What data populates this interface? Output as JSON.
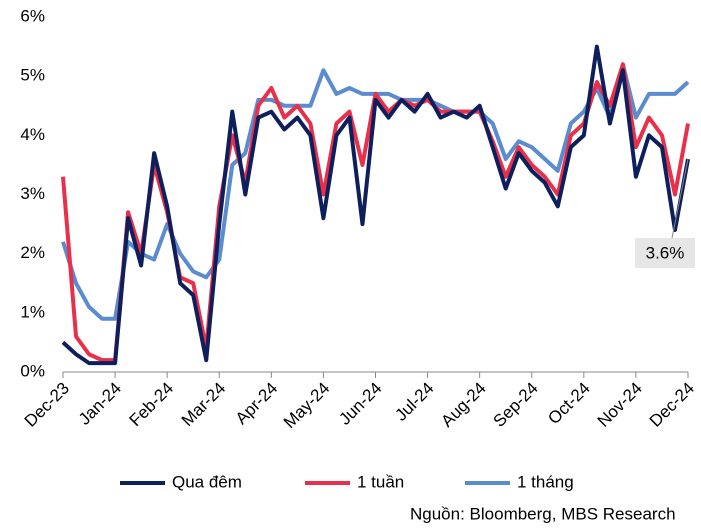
{
  "chart_data": {
    "type": "line",
    "categories": [
      "Dec-23",
      null,
      null,
      null,
      "Jan-24",
      null,
      null,
      null,
      "Feb-24",
      null,
      null,
      null,
      "Mar-24",
      null,
      null,
      null,
      "Apr-24",
      null,
      null,
      null,
      "May-24",
      null,
      null,
      null,
      "Jun-24",
      null,
      null,
      null,
      "Jul-24",
      null,
      null,
      null,
      "Aug-24",
      null,
      null,
      null,
      "Sep-24",
      null,
      null,
      null,
      "Oct-24",
      null,
      null,
      null,
      "Nov-24",
      null,
      null,
      null,
      "Dec-24"
    ],
    "series": [
      {
        "name": "Qua đêm",
        "color": "#0d1f5c",
        "values": [
          0.5,
          0.3,
          0.15,
          0.15,
          0.15,
          2.6,
          1.8,
          3.7,
          2.8,
          1.5,
          1.3,
          0.2,
          2.5,
          4.4,
          3.0,
          4.3,
          4.4,
          4.1,
          4.3,
          4.0,
          2.6,
          4.0,
          4.3,
          2.5,
          4.6,
          4.3,
          4.6,
          4.4,
          4.7,
          4.3,
          4.4,
          4.3,
          4.5,
          3.8,
          3.1,
          3.7,
          3.4,
          3.2,
          2.8,
          3.8,
          4.0,
          5.5,
          4.2,
          5.1,
          3.3,
          4.0,
          3.8,
          2.4,
          3.6
        ]
      },
      {
        "name": "1 tuần",
        "color": "#e8304a",
        "values": [
          3.3,
          0.6,
          0.3,
          0.2,
          0.2,
          2.7,
          2.0,
          3.5,
          2.7,
          1.6,
          1.5,
          0.4,
          2.8,
          4.0,
          3.2,
          4.5,
          4.8,
          4.3,
          4.5,
          4.2,
          3.0,
          4.2,
          4.4,
          3.5,
          4.7,
          4.4,
          4.6,
          4.5,
          4.6,
          4.4,
          4.4,
          4.4,
          4.4,
          3.9,
          3.3,
          3.8,
          3.5,
          3.3,
          3.0,
          4.0,
          4.2,
          4.9,
          4.5,
          5.2,
          3.8,
          4.3,
          4.0,
          3.0,
          4.2
        ]
      },
      {
        "name": "1 tháng",
        "color": "#5b8ccf",
        "values": [
          2.2,
          1.5,
          1.1,
          0.9,
          0.9,
          2.2,
          2.0,
          1.9,
          2.5,
          2.0,
          1.7,
          1.6,
          1.9,
          3.5,
          3.7,
          4.6,
          4.6,
          4.5,
          4.5,
          4.5,
          5.1,
          4.7,
          4.8,
          4.7,
          4.7,
          4.7,
          4.6,
          4.6,
          4.6,
          4.5,
          4.4,
          4.4,
          4.4,
          4.2,
          3.6,
          3.9,
          3.8,
          3.6,
          3.4,
          4.2,
          4.4,
          4.8,
          4.3,
          5.2,
          4.3,
          4.7,
          4.7,
          4.7,
          4.9
        ]
      }
    ],
    "ylim": [
      0,
      6
    ],
    "yticks": [
      {
        "value": 0,
        "label": "0%"
      },
      {
        "value": 1,
        "label": "1%"
      },
      {
        "value": 2,
        "label": "2%"
      },
      {
        "value": 3,
        "label": "3%"
      },
      {
        "value": 4,
        "label": "4%"
      },
      {
        "value": 5,
        "label": "5%"
      },
      {
        "value": 6,
        "label": "6%"
      }
    ],
    "grid": false,
    "annotation": {
      "value": 3.6,
      "label": "3.6%"
    },
    "source": "Nguồn: Bloomberg, MBS Research"
  }
}
